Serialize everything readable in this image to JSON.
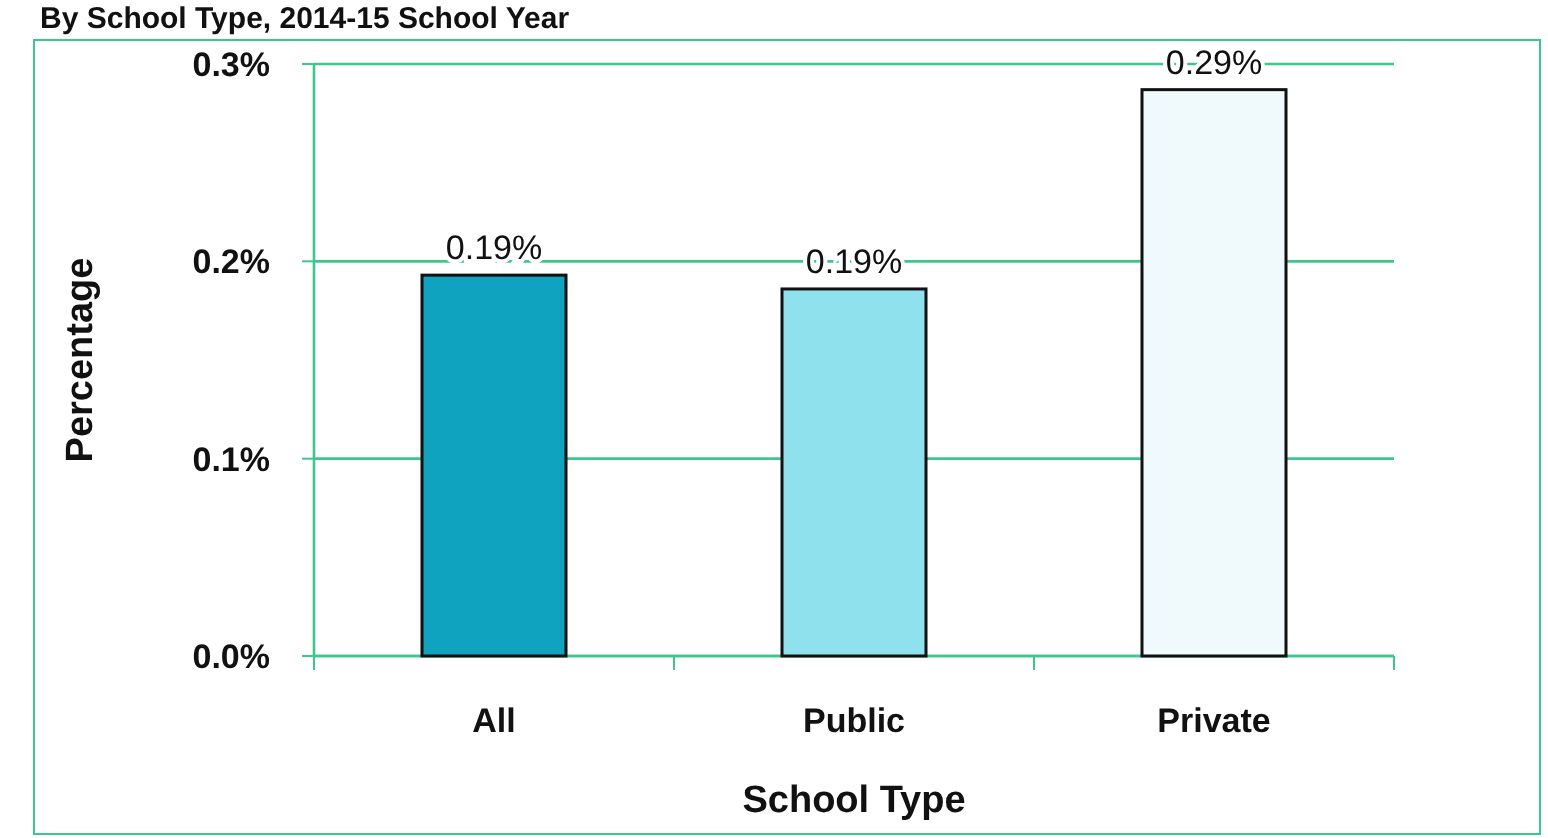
{
  "chart_data": {
    "type": "bar",
    "title": "By School Type, 2014-15 School Year",
    "xlabel": "School Type",
    "ylabel": "Percentage",
    "categories": [
      "All",
      "Public",
      "Private"
    ],
    "values": [
      0.193,
      0.186,
      0.287
    ],
    "colors": [
      "#0fa3c0",
      "#8fe1ee",
      "#f0fafc"
    ],
    "value_labels": [
      "0.19%",
      "0.19%",
      "0.29%"
    ],
    "ylim": [
      0,
      0.3
    ],
    "yticks": [
      {
        "value": 0,
        "label": "0.0%"
      },
      {
        "value": 0.1,
        "label": "0.1%"
      },
      {
        "value": 0.2,
        "label": "0.2%"
      },
      {
        "value": 0.3,
        "label": "0.3%"
      }
    ],
    "grid": "y"
  }
}
